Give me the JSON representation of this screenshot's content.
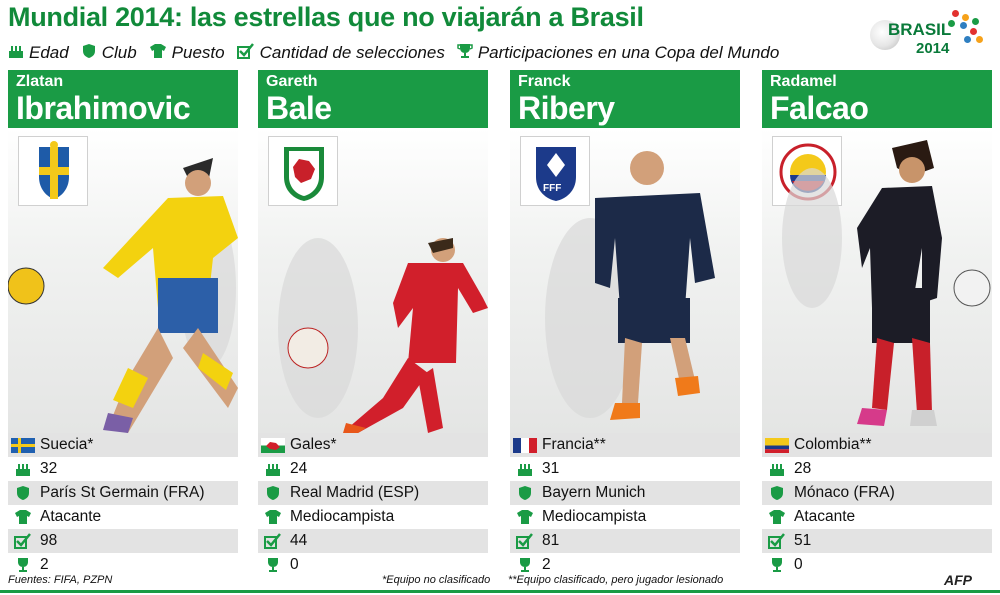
{
  "title": "Mundial 2014: las estrellas que no viajarán a Brasil",
  "legend": [
    {
      "icon": "cake-icon",
      "label": "Edad"
    },
    {
      "icon": "shield-icon",
      "label": "Club"
    },
    {
      "icon": "shirt-icon",
      "label": "Puesto"
    },
    {
      "icon": "checkbox-icon",
      "label": "Cantidad de selecciones"
    },
    {
      "icon": "trophy-icon",
      "label": "Participaciones en una Copa del Mundo"
    }
  ],
  "logo": {
    "word": "BRASIL",
    "year": "2014"
  },
  "players": [
    {
      "first": "Zlatan",
      "last": "Ibrahimovic",
      "flag": "sweden-flag-icon",
      "crest": "sweden-crest-icon",
      "country": "Suecia*",
      "age": "32",
      "club": "París St Germain (FRA)",
      "position": "Atacante",
      "caps": "98",
      "worldcups": "2"
    },
    {
      "first": "Gareth",
      "last": "Bale",
      "flag": "wales-flag-icon",
      "crest": "wales-crest-icon",
      "country": "Gales*",
      "age": "24",
      "club": "Real Madrid (ESP)",
      "position": "Mediocampista",
      "caps": "44",
      "worldcups": "0"
    },
    {
      "first": "Franck",
      "last": "Ribery",
      "flag": "france-flag-icon",
      "crest": "france-crest-icon",
      "country": "Francia**",
      "age": "31",
      "club": "Bayern Munich",
      "position": "Mediocampista",
      "caps": "81",
      "worldcups": "2"
    },
    {
      "first": "Radamel",
      "last": "Falcao",
      "flag": "colombia-flag-icon",
      "crest": "colombia-crest-icon",
      "country": "Colombia**",
      "age": "28",
      "club": "Mónaco (FRA)",
      "position": "Atacante",
      "caps": "51",
      "worldcups": "0"
    }
  ],
  "footer": {
    "sources": "Fuentes: FIFA, PZPN",
    "note1": "*Equipo no clasificado",
    "note2": "**Equipo clasificado, pero jugador lesionado",
    "agency": "AFP"
  },
  "colors": {
    "accent": "#1a9b45",
    "title": "#118a3a",
    "row_shade": "#e3e3e3"
  }
}
